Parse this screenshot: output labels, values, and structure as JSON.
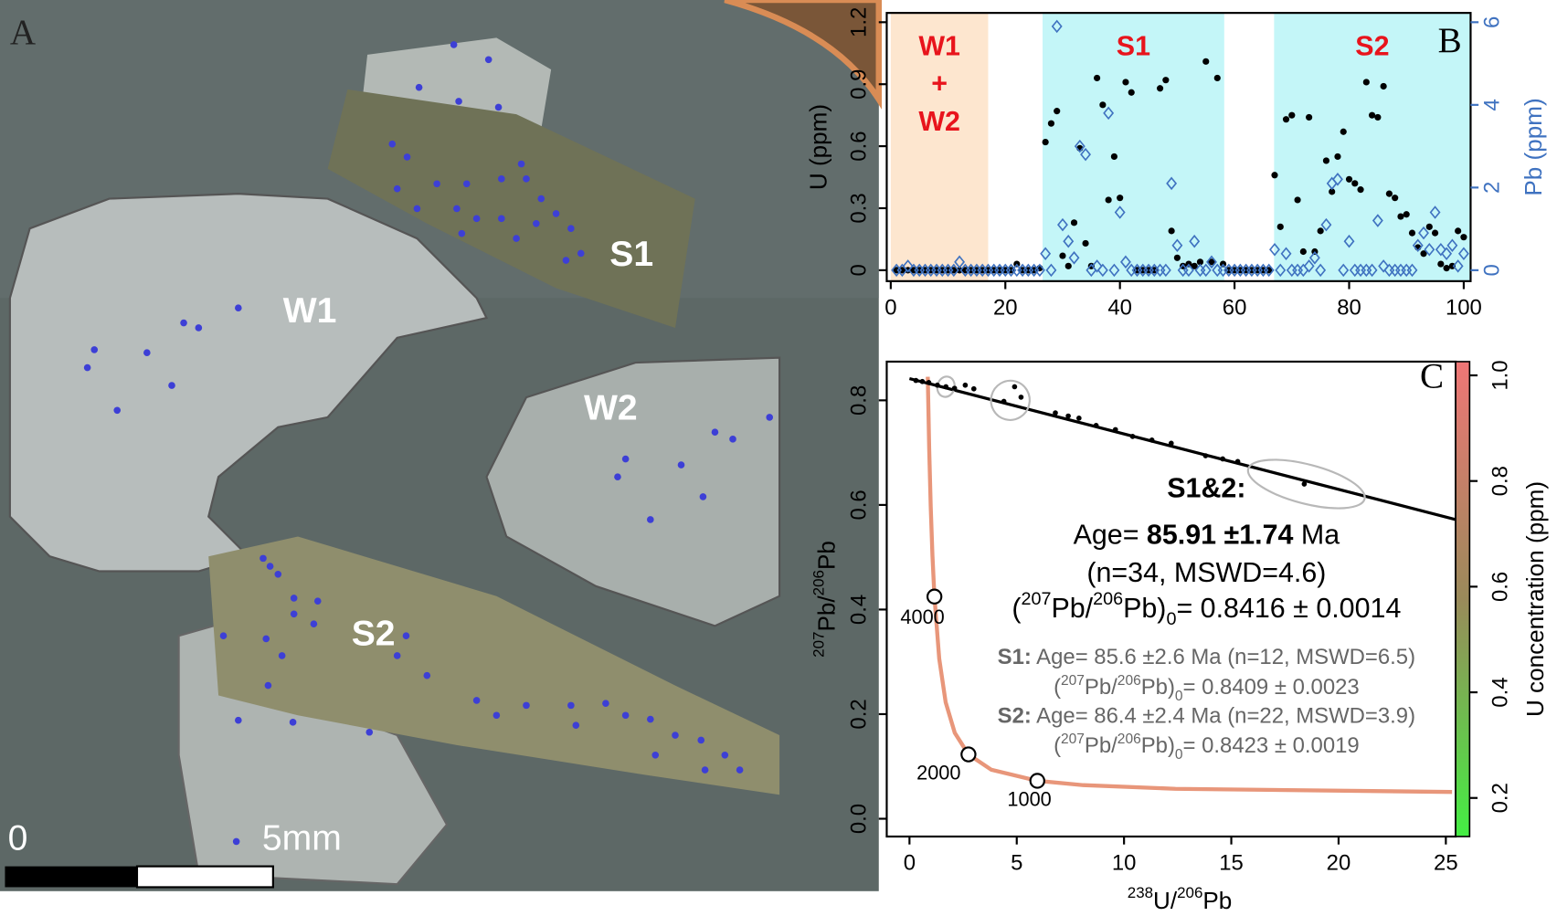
{
  "photo": {
    "panel_label": "A",
    "labels": [
      "W1",
      "S1",
      "W2",
      "S2"
    ],
    "scale_start": "0",
    "scale_end": "5mm"
  },
  "chart_data": [
    {
      "type": "scatter",
      "panel_label": "B",
      "ylabel": "U (ppm)",
      "y2label": "Pb (ppm)",
      "xlim": [
        -0.7,
        101.2
      ],
      "xticks": [
        0,
        20,
        40,
        60,
        80,
        100
      ],
      "ylim": [
        -0.053,
        1.245
      ],
      "yticks": [
        0,
        0.3,
        0.6,
        0.9,
        1.2
      ],
      "y2lim": [
        -0.265,
        6.225
      ],
      "y2ticks": [
        0,
        2,
        4,
        6
      ],
      "y2color": "#3f72c0",
      "regions": [
        {
          "lines": [
            "W1",
            "+",
            "W2"
          ],
          "x": [
            0,
            17
          ],
          "color": "#fde6cf"
        },
        {
          "lines": [
            "S1"
          ],
          "x": [
            26.5,
            58.2
          ],
          "color": "#c4f6f8"
        },
        {
          "lines": [
            "S2"
          ],
          "x": [
            66.9,
            101.2
          ],
          "color": "#c4f6f8"
        }
      ],
      "region_label_color": "#e8141c",
      "x": [
        1,
        2,
        3,
        4,
        5,
        6,
        7,
        8,
        9,
        10,
        11,
        12,
        13,
        14,
        15,
        16,
        17,
        18,
        19,
        20,
        21,
        22,
        23,
        24,
        25,
        26,
        27,
        28,
        29,
        30,
        31,
        32,
        33,
        34,
        35,
        36,
        37,
        38,
        39,
        40,
        41,
        42,
        43,
        44,
        45,
        46,
        47,
        48,
        49,
        50,
        51,
        52,
        53,
        54,
        55,
        56,
        57,
        58,
        59,
        60,
        61,
        62,
        63,
        64,
        65,
        66,
        67,
        68,
        69,
        70,
        71,
        72,
        73,
        74,
        75,
        76,
        77,
        78,
        79,
        80,
        81,
        82,
        83,
        84,
        85,
        86,
        87,
        88,
        89,
        90,
        91,
        92,
        93,
        94,
        95,
        96,
        97,
        98,
        99,
        100
      ],
      "series": [
        {
          "name": "U",
          "color": "#000000",
          "marker": "dot",
          "values": [
            0,
            0,
            0,
            0,
            0,
            0,
            0,
            0,
            0,
            0,
            0,
            0,
            0,
            0,
            0,
            0,
            0,
            0,
            0,
            0,
            0,
            0.03,
            0,
            0,
            0,
            0.01,
            0.62,
            0.71,
            0.77,
            0.07,
            0.02,
            0.23,
            0.59,
            0.13,
            0.02,
            0.93,
            0.8,
            0.34,
            0.55,
            0.35,
            0.91,
            0.86,
            0,
            0,
            0,
            0,
            0.88,
            0.92,
            0.19,
            0.06,
            0.02,
            0.03,
            0.02,
            0.04,
            1.01,
            0.04,
            0.93,
            0.03,
            0,
            0,
            0,
            0,
            0,
            0,
            0,
            0,
            0.46,
            0.21,
            0.73,
            0.75,
            0.34,
            0.09,
            0.74,
            0.09,
            0.19,
            0.53,
            0.38,
            0.55,
            0.67,
            0.44,
            0.42,
            0.39,
            0.91,
            0.75,
            0.74,
            0.89,
            0.37,
            0.35,
            0.26,
            0.27,
            0.18,
            0.11,
            0.08,
            0.21,
            0.18,
            0.03,
            0.01,
            0.02,
            0.19,
            0.16
          ]
        },
        {
          "name": "Pb",
          "color": "#3f72c0",
          "marker": "diamond",
          "axis": "y2",
          "values": [
            0,
            0,
            0.1,
            0,
            0,
            0,
            0,
            0,
            0,
            0,
            0,
            0.2,
            0,
            0,
            0,
            0,
            0,
            0,
            0,
            0,
            0,
            0,
            0,
            0,
            0,
            0,
            0.4,
            0,
            5.9,
            1.1,
            0.7,
            0.3,
            3.0,
            2.8,
            0,
            0.1,
            0,
            3.8,
            0,
            1.4,
            0.2,
            0,
            0,
            0,
            0,
            0,
            0,
            0,
            2.1,
            0.6,
            0,
            0,
            0.7,
            0,
            0,
            0.2,
            0,
            0,
            0,
            0,
            0,
            0,
            0,
            0,
            0,
            0,
            0.5,
            0,
            0.4,
            0,
            0,
            0,
            0.1,
            0.3,
            0,
            1.1,
            2.1,
            2.2,
            0,
            0.7,
            0,
            0,
            0,
            0,
            1.2,
            0.1,
            0,
            0,
            0,
            0,
            0,
            0.6,
            0.9,
            0.5,
            1.4,
            0.5,
            0.4,
            0.6,
            0.1,
            0.4
          ]
        }
      ]
    },
    {
      "type": "isochron",
      "panel_label": "C",
      "xlabel": [
        {
          "text": "238",
          "sup": true
        },
        {
          "text": "U/"
        },
        {
          "text": "206",
          "sup": true
        },
        {
          "text": "Pb"
        }
      ],
      "ylabel": [
        {
          "text": "207",
          "sup": true
        },
        {
          "text": "Pb/"
        },
        {
          "text": "206",
          "sup": true
        },
        {
          "text": "Pb"
        }
      ],
      "xlim": [
        -1.06,
        25.46
      ],
      "xticks": [
        0,
        5,
        10,
        15,
        20,
        25
      ],
      "ylim": [
        -0.034,
        0.874
      ],
      "yticks": [
        {
          "value": 0,
          "label": "0.0"
        },
        0.2,
        0.4,
        0.6,
        0.8
      ],
      "concordia": {
        "color": "#e8967a",
        "x": [
          0.853,
          0.918,
          0.99,
          1.071,
          1.163,
          1.387,
          1.687,
          2.111,
          2.749,
          3.817,
          5.959,
          8.1,
          12.4,
          25.29
        ],
        "y": [
          0.845,
          0.709,
          0.597,
          0.503,
          0.4248,
          0.3058,
          0.2226,
          0.1643,
          0.123,
          0.0936,
          0.0725,
          0.0642,
          0.0572,
          0.0512
        ]
      },
      "age_markers": [
        {
          "age": 4000,
          "x": 1.163,
          "y": 0.4248
        },
        {
          "age": 2000,
          "x": 2.749,
          "y": 0.123
        },
        {
          "age": 1000,
          "x": 5.959,
          "y": 0.0725
        }
      ],
      "isochron": {
        "x": [
          0,
          25.46
        ],
        "y": [
          0.8416,
          0.572
        ]
      },
      "points": {
        "x": [
          0.3,
          0.6,
          0.9,
          1.3,
          1.7,
          2.1,
          2.6,
          3.0,
          4.4,
          4.9,
          5.2,
          6.8,
          7.4,
          7.9,
          8.7,
          9.6,
          10.4,
          11.3,
          12.2,
          13.8,
          14.6,
          15.3,
          18.4
        ],
        "y": [
          0.838,
          0.836,
          0.834,
          0.829,
          0.826,
          0.823,
          0.829,
          0.822,
          0.798,
          0.826,
          0.806,
          0.776,
          0.77,
          0.766,
          0.752,
          0.744,
          0.731,
          0.724,
          0.718,
          0.694,
          0.688,
          0.683,
          0.64
        ]
      },
      "ellipses": [
        {
          "x": 1.7,
          "y": 0.826,
          "rx": 0.4,
          "ry": 0.012
        },
        {
          "x": 4.7,
          "y": 0.8,
          "rx": 0.9,
          "ry": 0.03
        },
        {
          "x": 18.5,
          "y": 0.64,
          "rx": 2.8,
          "ry": 0.03
        }
      ],
      "annotations": [
        {
          "style": "main",
          "runs": [
            {
              "text": "S1&2:",
              "bold": true
            }
          ]
        },
        {
          "style": "main",
          "runs": [
            {
              "text": "Age= "
            },
            {
              "text": "85.91 ±1.74",
              "bold": true
            },
            {
              "text": " Ma"
            }
          ]
        },
        {
          "style": "main",
          "runs": [
            {
              "text": "(n=34, MSWD=4.6)"
            }
          ]
        },
        {
          "style": "main",
          "runs": [
            {
              "text": "("
            },
            {
              "text": "207",
              "sup": true
            },
            {
              "text": "Pb/"
            },
            {
              "text": "206",
              "sup": true
            },
            {
              "text": "Pb)"
            },
            {
              "text": "0",
              "sub": true
            },
            {
              "text": "= 0.8416 ± 0.0014"
            }
          ]
        },
        {
          "style": "minor",
          "runs": [
            {
              "text": "S1:",
              "bold": true
            },
            {
              "text": " Age= 85.6 ±2.6 Ma (n=12, MSWD=6.5)"
            }
          ]
        },
        {
          "style": "minor",
          "runs": [
            {
              "text": "("
            },
            {
              "text": "207",
              "sup": true
            },
            {
              "text": "Pb/"
            },
            {
              "text": "206",
              "sup": true
            },
            {
              "text": "Pb)"
            },
            {
              "text": "0",
              "sub": true
            },
            {
              "text": "= 0.8409 ± 0.0023"
            }
          ]
        },
        {
          "style": "minor",
          "runs": [
            {
              "text": "S2:",
              "bold": true
            },
            {
              "text": " Age= 86.4 ±2.4 Ma (n=22, MSWD=3.9)"
            }
          ]
        },
        {
          "style": "minor",
          "runs": [
            {
              "text": "("
            },
            {
              "text": "207",
              "sup": true
            },
            {
              "text": "Pb/"
            },
            {
              "text": "206",
              "sup": true
            },
            {
              "text": "Pb)"
            },
            {
              "text": "0",
              "sub": true
            },
            {
              "text": "= 0.8423 ± 0.0019"
            }
          ]
        }
      ],
      "colorbar": {
        "label": "U concentration (ppm)",
        "clim": [
          0.127,
          1.026
        ],
        "ticks": [
          0.2,
          0.4,
          0.6,
          0.8,
          {
            "value": 1,
            "label": "1.0"
          }
        ],
        "colors": [
          "#44ee44",
          "#9a8a5a",
          "#f07676"
        ]
      }
    }
  ]
}
